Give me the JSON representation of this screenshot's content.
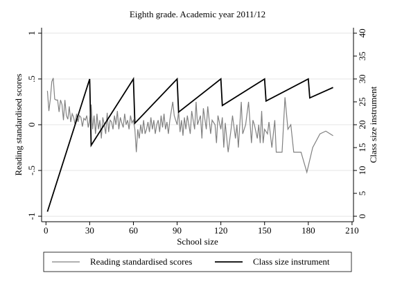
{
  "chart_data": {
    "type": "line",
    "title": "Eighth grade. Academic year 2011/12",
    "xlabel": "School size",
    "ylabel": "Reading standardised scores",
    "y2label": "Class size instrument",
    "xlim": [
      -3,
      211
    ],
    "xticks": [
      0,
      30,
      60,
      90,
      120,
      150,
      180,
      210
    ],
    "ylim": [
      -1.06,
      1.06
    ],
    "yticks": [
      {
        "value": -1,
        "label": "-1"
      },
      {
        "value": -0.5,
        "label": "-.5"
      },
      0,
      {
        "value": 0.5,
        "label": ".5"
      },
      1
    ],
    "y2lim": [
      -1.2,
      41.2
    ],
    "y2ticks": [
      0,
      5,
      10,
      15,
      20,
      25,
      30,
      35,
      40
    ],
    "grid": true,
    "legend": "bottom",
    "series": [
      {
        "name": "Reading standardised scores",
        "color": "#808080",
        "x": [
          1,
          2,
          3,
          4,
          5,
          6,
          7,
          8,
          9,
          10,
          11,
          12,
          13,
          14,
          15,
          16,
          17,
          18,
          19,
          20,
          21,
          22,
          23,
          24,
          25,
          26,
          27,
          28,
          29,
          30,
          31,
          32,
          33,
          34,
          35,
          36,
          37,
          38,
          39,
          40,
          41,
          42,
          43,
          44,
          45,
          46,
          47,
          48,
          49,
          50,
          51,
          52,
          53,
          54,
          55,
          56,
          57,
          58,
          59,
          60,
          61,
          62,
          63,
          64,
          65,
          66,
          67,
          68,
          69,
          70,
          71,
          72,
          73,
          74,
          75,
          76,
          77,
          78,
          79,
          80,
          81,
          82,
          83,
          84,
          85,
          86,
          87,
          88,
          89,
          90,
          91,
          92,
          93,
          94,
          95,
          96,
          97,
          98,
          99,
          100,
          102,
          103,
          104,
          106,
          107,
          108,
          110,
          111,
          113,
          114,
          116,
          117,
          118,
          120,
          121,
          122,
          123,
          125,
          127,
          128,
          130,
          131,
          132,
          134,
          135,
          137,
          139,
          141,
          142,
          143,
          145,
          146,
          147,
          148,
          149,
          150,
          152,
          153,
          155,
          157,
          158,
          160,
          162,
          164,
          166,
          168,
          170,
          175,
          179,
          183,
          188,
          192,
          197
        ],
        "values": [
          0.37,
          0.15,
          0.28,
          0.47,
          0.51,
          0.28,
          0.27,
          0.27,
          0.14,
          0.27,
          0.22,
          0.05,
          0.27,
          0.1,
          0.06,
          0.2,
          0.03,
          0.12,
          0.08,
          0.0,
          0.12,
          0.03,
          0.1,
          0.08,
          -0.02,
          0.07,
          0.05,
          0.1,
          -0.03,
          0.05,
          0.22,
          -0.05,
          0.1,
          -0.1,
          0.12,
          -0.05,
          0.05,
          -0.15,
          0.08,
          0.0,
          -0.1,
          0.13,
          -0.08,
          0.05,
          0.03,
          -0.05,
          0.1,
          0.0,
          0.15,
          -0.05,
          0.08,
          0.02,
          -0.03,
          0.12,
          0.0,
          0.05,
          -0.05,
          0.1,
          0.02,
          0.05,
          -0.05,
          -0.3,
          -0.05,
          -0.15,
          0.0,
          -0.1,
          0.05,
          -0.1,
          -0.05,
          0.03,
          -0.08,
          0.08,
          -0.05,
          0.05,
          -0.1,
          0.0,
          0.05,
          -0.08,
          0.1,
          -0.03,
          0.12,
          -0.05,
          0.03,
          -0.1,
          0.05,
          0.15,
          0.25,
          0.1,
          0.05,
          0.0,
          0.15,
          -0.08,
          0.05,
          -0.12,
          0.08,
          -0.05,
          0.1,
          0.0,
          -0.1,
          0.15,
          -0.05,
          0.25,
          0.0,
          0.1,
          -0.15,
          0.18,
          -0.05,
          0.2,
          -0.1,
          0.05,
          0.0,
          -0.2,
          0.1,
          -0.05,
          0.08,
          -0.25,
          0.02,
          -0.3,
          -0.05,
          0.1,
          -0.15,
          0.0,
          -0.25,
          0.25,
          -0.1,
          0.0,
          0.25,
          -0.2,
          0.05,
          0.0,
          -0.15,
          0.0,
          -0.2,
          0.15,
          -0.2,
          -0.05,
          -0.1,
          0.03,
          -0.25,
          0.05,
          -0.3,
          -0.3,
          -0.3,
          0.3,
          -0.05,
          0.0,
          -0.3,
          -0.3,
          -0.52,
          -0.25,
          -0.1,
          -0.07,
          -0.12
        ]
      },
      {
        "name": "Class size instrument",
        "color": "#000000",
        "axis": "y2",
        "x": [
          1,
          30,
          31,
          60,
          61,
          90,
          91,
          120,
          121,
          150,
          151,
          180,
          181,
          197
        ],
        "values": [
          1,
          30,
          15.5,
          30,
          20.33,
          30,
          22.75,
          30,
          24.2,
          30,
          25.17,
          30,
          25.86,
          28.14
        ]
      }
    ]
  }
}
